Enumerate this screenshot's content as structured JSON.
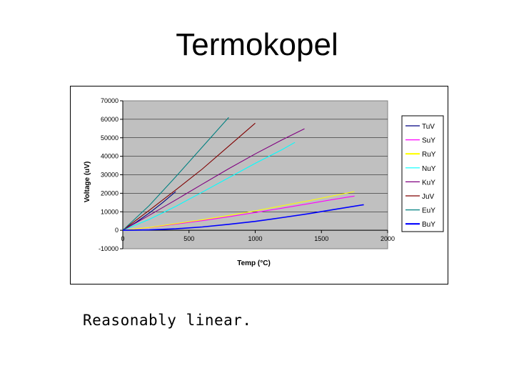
{
  "slide": {
    "title": "Termokopel",
    "caption": "Reasonably linear."
  },
  "chart_data": {
    "type": "line",
    "xlabel": "Temp (°C)",
    "ylabel": "Voltage (uV)",
    "xlim": [
      0,
      2000
    ],
    "ylim": [
      -10000,
      70000
    ],
    "x_ticks": [
      "0",
      "500",
      "1000",
      "1500",
      "2000"
    ],
    "y_ticks": [
      "-10000",
      "0",
      "10000",
      "20000",
      "30000",
      "40000",
      "50000",
      "60000",
      "70000"
    ],
    "grid": "horizontal",
    "plot_background": "#c0c0c0",
    "legend_position": "right",
    "series": [
      {
        "name": "TuV",
        "color": "#000080",
        "x": [
          0,
          100,
          200,
          300,
          400
        ],
        "y": [
          0,
          4300,
          9300,
          14900,
          20900
        ]
      },
      {
        "name": "SuY",
        "color": "#ff00ff",
        "x": [
          0,
          200,
          400,
          600,
          800,
          1000,
          1200,
          1400,
          1600,
          1750
        ],
        "y": [
          0,
          1400,
          3300,
          5200,
          7300,
          9600,
          11900,
          14300,
          16800,
          18500
        ]
      },
      {
        "name": "RuY",
        "color": "#ffff00",
        "x": [
          0,
          200,
          400,
          600,
          800,
          1000,
          1200,
          1400,
          1600,
          1750
        ],
        "y": [
          0,
          1500,
          3600,
          5700,
          8000,
          10500,
          13200,
          15900,
          18800,
          20900
        ]
      },
      {
        "name": "NuY",
        "color": "#00ffff",
        "x": [
          0,
          200,
          400,
          600,
          800,
          1000,
          1200,
          1300
        ],
        "y": [
          0,
          5900,
          12900,
          20600,
          28400,
          36200,
          43500,
          47500
        ]
      },
      {
        "name": "KuY",
        "color": "#800080",
        "x": [
          0,
          200,
          400,
          600,
          800,
          1000,
          1200,
          1372
        ],
        "y": [
          0,
          8100,
          16400,
          24900,
          33300,
          41300,
          48800,
          54900
        ]
      },
      {
        "name": "JuV",
        "color": "#800000",
        "x": [
          0,
          200,
          400,
          600,
          800,
          1000
        ],
        "y": [
          0,
          10800,
          21800,
          33100,
          45500,
          57900
        ]
      },
      {
        "name": "EuY",
        "color": "#008080",
        "x": [
          0,
          200,
          400,
          600,
          800
        ],
        "y": [
          0,
          13400,
          28900,
          45000,
          61000
        ]
      },
      {
        "name": "BuY",
        "color": "#0000ff",
        "x": [
          0,
          200,
          400,
          600,
          800,
          1000,
          1200,
          1400,
          1600,
          1820
        ],
        "y": [
          0,
          200,
          800,
          1800,
          3200,
          4800,
          6800,
          8900,
          11300,
          13800
        ]
      }
    ]
  }
}
